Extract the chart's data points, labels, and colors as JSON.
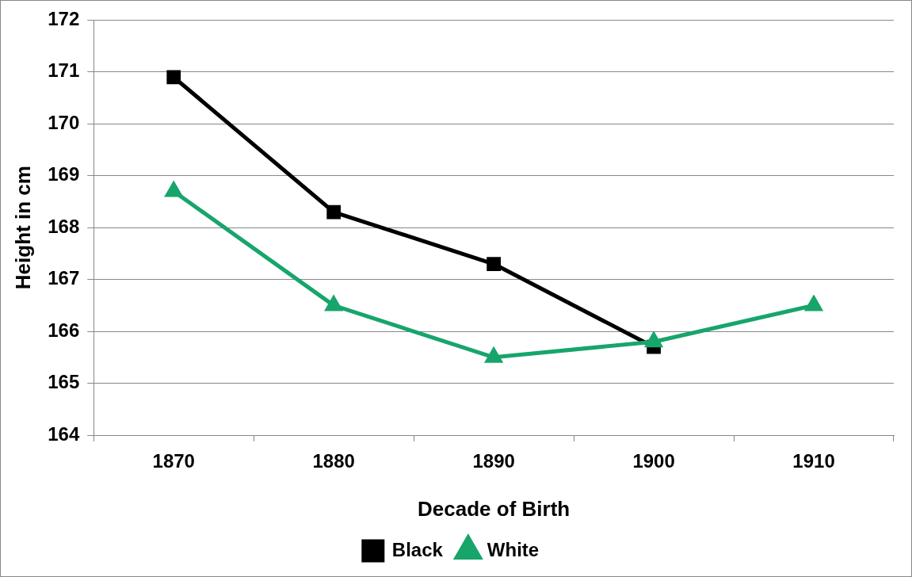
{
  "chart_data": {
    "type": "line",
    "xlabel": "Decade of Birth",
    "ylabel": "Height in cm",
    "categories": [
      "1870",
      "1880",
      "1890",
      "1900",
      "1910"
    ],
    "series": [
      {
        "name": "Black",
        "color": "#000000",
        "marker": "square",
        "values": [
          170.9,
          168.3,
          167.3,
          165.7,
          null
        ]
      },
      {
        "name": "White",
        "color": "#17a56b",
        "marker": "triangle",
        "values": [
          168.7,
          166.5,
          165.5,
          165.8,
          166.5
        ]
      }
    ],
    "ylim": [
      164,
      172
    ],
    "yticks": [
      164,
      165,
      166,
      167,
      168,
      169,
      170,
      171,
      172
    ],
    "grid": "y",
    "legend": "bottom",
    "line_style": "solid"
  }
}
